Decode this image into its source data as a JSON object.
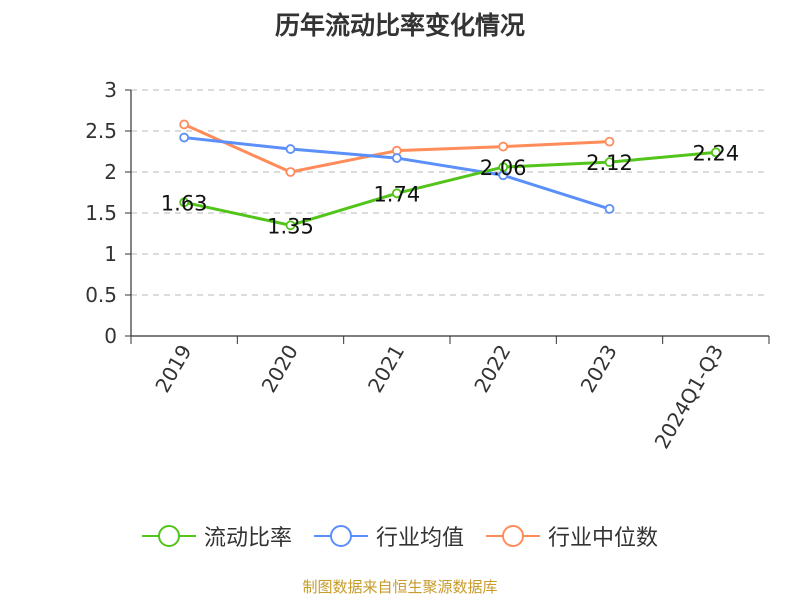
{
  "chart_data": {
    "type": "line",
    "title": "历年流动比率变化情况",
    "categories": [
      "2019",
      "2020",
      "2021",
      "2022",
      "2023",
      "2024Q1-Q3"
    ],
    "ylim": [
      0,
      3
    ],
    "yticks": [
      "0",
      "0.5",
      "1",
      "1.5",
      "2",
      "2.5",
      "3"
    ],
    "grid": "horizontal dashed",
    "legend_position": "bottom",
    "series": [
      {
        "name": "流动比率",
        "color": "#52c41a",
        "values": [
          1.63,
          1.35,
          1.74,
          2.06,
          2.12,
          2.24
        ],
        "labels": [
          "1.63",
          "1.35",
          "1.74",
          "2.06",
          "2.12",
          "2.24"
        ]
      },
      {
        "name": "行业均值",
        "color": "#5b8ff9",
        "values": [
          2.42,
          2.28,
          2.17,
          1.96,
          1.55,
          null
        ]
      },
      {
        "name": "行业中位数",
        "color": "#ff8c5a",
        "values": [
          2.58,
          2.0,
          2.26,
          2.31,
          2.37,
          null
        ]
      }
    ]
  },
  "footer": {
    "source": "制图数据来自恒生聚源数据库"
  }
}
